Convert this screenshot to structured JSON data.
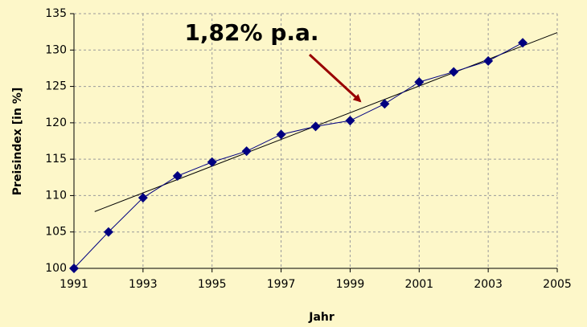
{
  "chart_data": {
    "type": "line",
    "annotation": "1,82% p.a.",
    "x_label": "Jahr",
    "y_label": "Preisindex [in %]",
    "x": [
      1991,
      1992,
      1993,
      1994,
      1995,
      1996,
      1997,
      1998,
      1999,
      2000,
      2001,
      2002,
      2003,
      2004
    ],
    "values": [
      100,
      105,
      109.7,
      112.7,
      114.6,
      116.1,
      118.4,
      119.5,
      120.3,
      122.6,
      125.6,
      127.0,
      128.5,
      131.0
    ],
    "color": "#000080",
    "trendline": {
      "x": [
        1991.6,
        2005
      ],
      "values": [
        107.8,
        132.4
      ],
      "color": "#000000"
    },
    "annotation_color": "#990000",
    "xlim": [
      1991,
      2005
    ],
    "xticks": [
      1991,
      1993,
      1995,
      1997,
      1999,
      2001,
      2003,
      2005
    ],
    "ylim": [
      100,
      135
    ],
    "yticks": [
      100,
      105,
      110,
      115,
      120,
      125,
      130,
      135
    ],
    "grid": true
  }
}
